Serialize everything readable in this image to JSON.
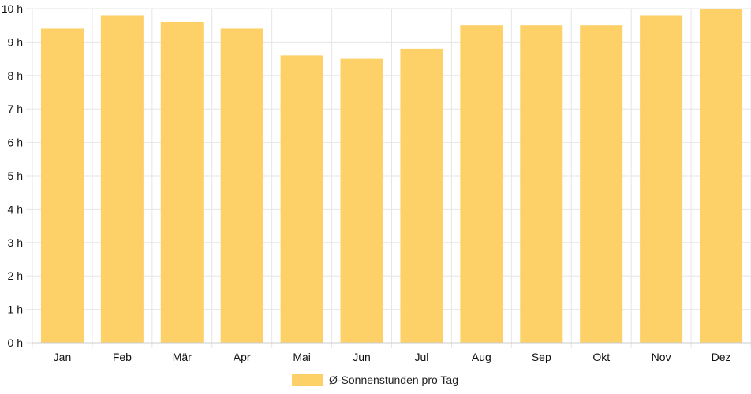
{
  "chart_data": {
    "type": "bar",
    "title": "",
    "xlabel": "",
    "ylabel": "",
    "categories": [
      "Jan",
      "Feb",
      "Mär",
      "Apr",
      "Mai",
      "Jun",
      "Jul",
      "Aug",
      "Sep",
      "Okt",
      "Nov",
      "Dez"
    ],
    "series": [
      {
        "name": "Ø-Sonnenstunden pro Tag",
        "values": [
          9.4,
          9.8,
          9.6,
          9.4,
          8.6,
          8.5,
          8.8,
          9.5,
          9.5,
          9.5,
          9.8,
          10.0
        ],
        "color": "#fdd068"
      }
    ],
    "ylim": [
      0,
      10
    ],
    "y_ticks": [
      0,
      1,
      2,
      3,
      4,
      5,
      6,
      7,
      8,
      9,
      10
    ],
    "y_tick_suffix": " h",
    "grid": true,
    "legend_position": "bottom"
  },
  "colors": {
    "bar": "#fdd068",
    "grid": "#e6e6e6",
    "axis": "#cccccc",
    "text": "#111111"
  }
}
